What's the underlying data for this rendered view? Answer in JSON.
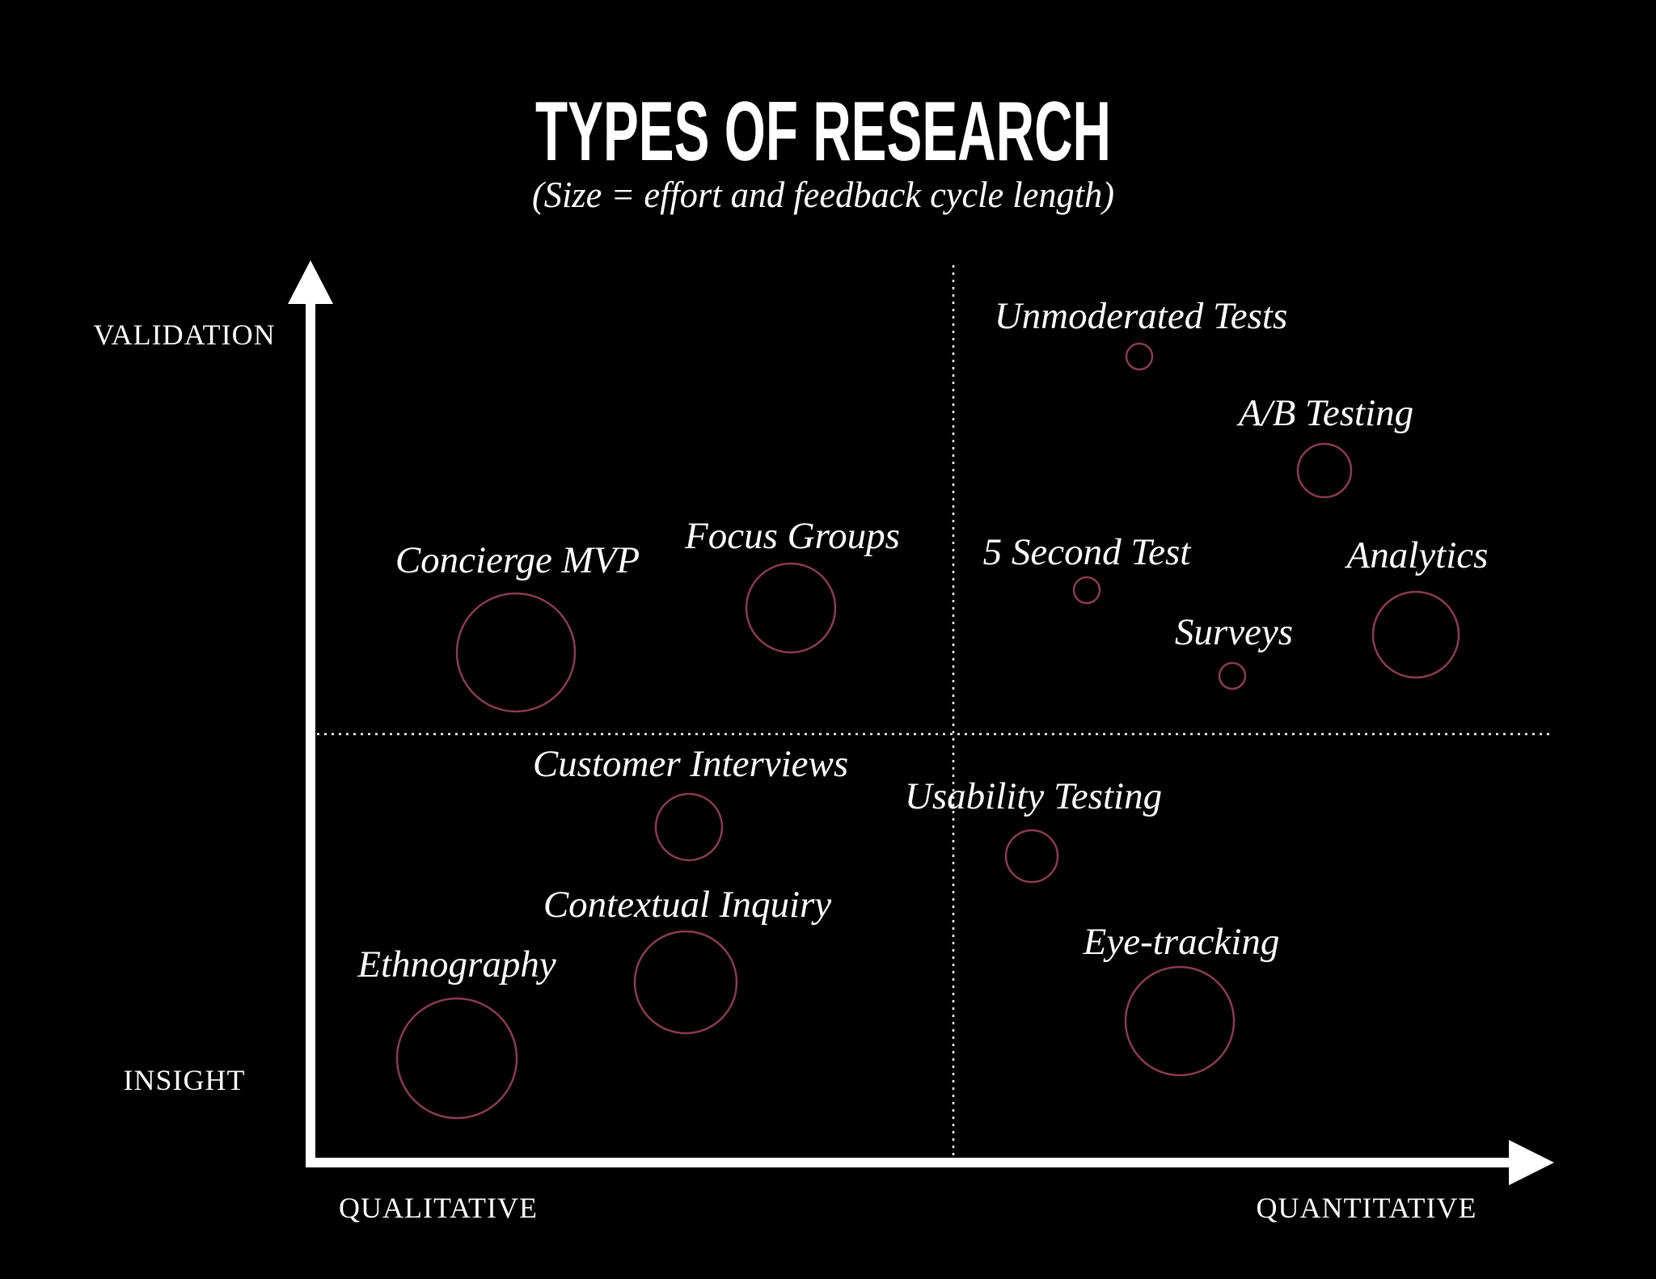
{
  "title": "TYPES OF RESEARCH",
  "subtitle": "(Size = effort and feedback cycle length)",
  "axes": {
    "y_top": "VALIDATION",
    "y_bottom": "INSIGHT",
    "x_left": "QUALITATIVE",
    "x_right": "QUANTITATIVE"
  },
  "colors": {
    "background": "#000000",
    "foreground": "#ffffff",
    "bubble_stroke": "#8a3a58"
  },
  "methods": [
    {
      "name": "Unmoderated Tests"
    },
    {
      "name": "A/B Testing"
    },
    {
      "name": "Concierge MVP"
    },
    {
      "name": "Focus Groups"
    },
    {
      "name": "5 Second Test"
    },
    {
      "name": "Analytics"
    },
    {
      "name": "Surveys"
    },
    {
      "name": "Customer Interviews"
    },
    {
      "name": "Usability Testing"
    },
    {
      "name": "Contextual Inquiry"
    },
    {
      "name": "Ethnography"
    },
    {
      "name": "Eye-tracking"
    }
  ]
}
